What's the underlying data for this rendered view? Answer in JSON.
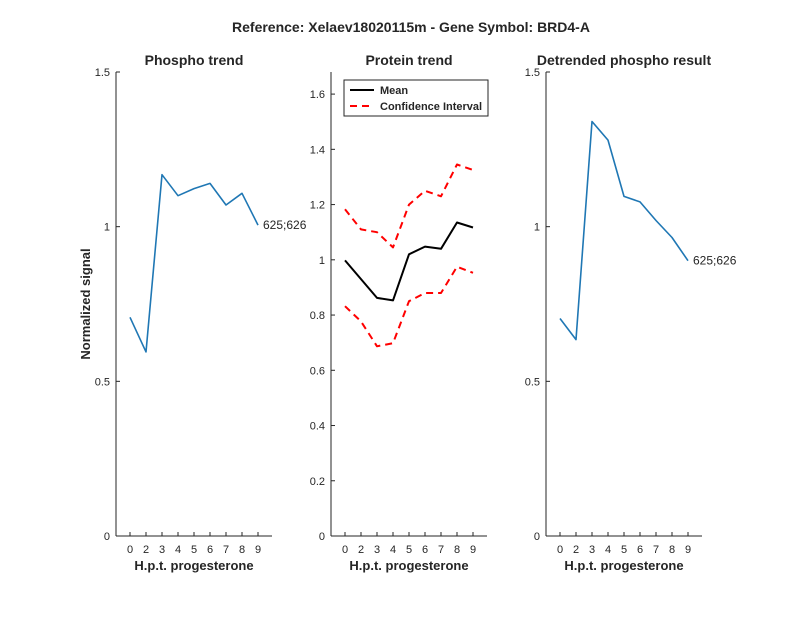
{
  "figure": {
    "suptitle": "Reference:  Xelaev18020115m - Gene Symbol:  BRD4-A"
  },
  "colors": {
    "phospho_line": "#1f77b4",
    "mean_line": "#000000",
    "ci_line": "#ff0000",
    "axis": "#262626"
  },
  "chart_data": [
    {
      "type": "line",
      "title": "Phospho trend",
      "xlabel": "H.p.t. progesterone",
      "ylabel": "Normalized signal",
      "categories": [
        "0",
        "2",
        "3",
        "4",
        "5",
        "6",
        "7",
        "8",
        "9"
      ],
      "ylim": [
        0,
        1.5
      ],
      "yticks": [
        0,
        0.5,
        1,
        1.5
      ],
      "ytick_labels": [
        "0",
        "0.5",
        "1",
        "1.5"
      ],
      "series": [
        {
          "name": "625;626",
          "values": [
            0.707,
            0.595,
            1.168,
            1.1,
            1.123,
            1.14,
            1.07,
            1.108,
            1.005
          ]
        }
      ],
      "end_label": "625;626",
      "grid": false
    },
    {
      "type": "line",
      "title": "Protein trend",
      "xlabel": "H.p.t. progesterone",
      "categories": [
        "0",
        "2",
        "3",
        "4",
        "5",
        "6",
        "7",
        "8",
        "9"
      ],
      "ylim": [
        0,
        1.68
      ],
      "yticks": [
        0,
        0.2,
        0.4,
        0.6,
        0.8,
        1,
        1.2,
        1.4,
        1.6
      ],
      "ytick_labels": [
        "0",
        "0.2",
        "0.4",
        "0.6",
        "0.8",
        "1",
        "1.2",
        "1.4",
        "1.6"
      ],
      "series": [
        {
          "name": "Mean",
          "style": "solid",
          "values": [
            0.998,
            0.93,
            0.862,
            0.853,
            1.02,
            1.048,
            1.04,
            1.135,
            1.117
          ]
        },
        {
          "name": "Confidence Interval",
          "style": "dashed",
          "values": [
            1.183,
            1.11,
            1.1,
            1.045,
            1.2,
            1.25,
            1.23,
            1.345,
            1.325
          ]
        },
        {
          "name": "Confidence Interval",
          "style": "dashed",
          "values": [
            0.832,
            0.777,
            0.687,
            0.698,
            0.85,
            0.88,
            0.88,
            0.975,
            0.953
          ]
        }
      ],
      "legend": {
        "placement": "top-left",
        "entries": [
          "Mean",
          "Confidence Interval"
        ]
      },
      "grid": false
    },
    {
      "type": "line",
      "title": "Detrended phospho result",
      "xlabel": "H.p.t. progesterone",
      "categories": [
        "0",
        "2",
        "3",
        "4",
        "5",
        "6",
        "7",
        "8",
        "9"
      ],
      "ylim": [
        0,
        1.5
      ],
      "yticks": [
        0,
        0.5,
        1,
        1.5
      ],
      "ytick_labels": [
        "0",
        "0.5",
        "1",
        "1.5"
      ],
      "series": [
        {
          "name": "625;626",
          "values": [
            0.703,
            0.635,
            1.34,
            1.28,
            1.098,
            1.08,
            1.02,
            0.965,
            0.89
          ]
        }
      ],
      "end_label": "625;626",
      "grid": false
    }
  ]
}
